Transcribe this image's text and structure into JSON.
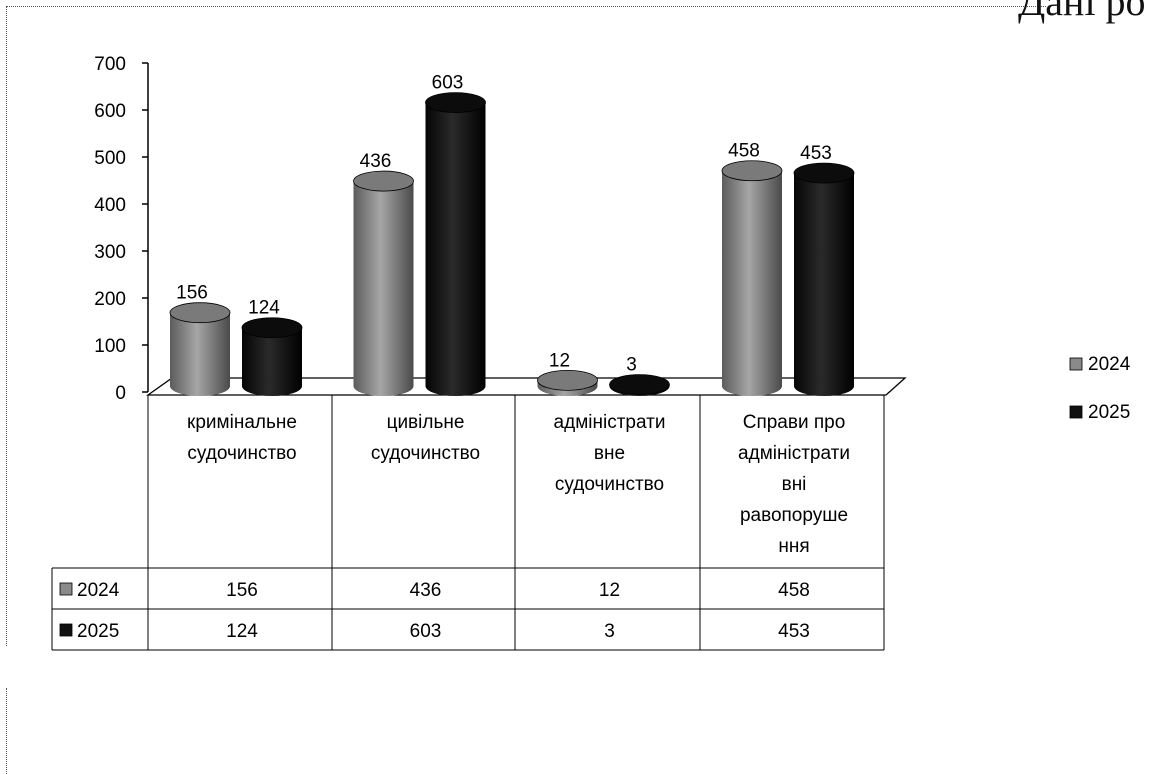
{
  "corner_text": "Дані ро",
  "chart_data": {
    "type": "bar",
    "categories": [
      [
        "кримінальне",
        "судочинство"
      ],
      [
        "цивільне",
        "судочинство"
      ],
      [
        "адміністрати",
        "вне",
        "судочинство"
      ],
      [
        "Справи про",
        "адміністрати",
        "вні",
        "равопоруше",
        "ння"
      ]
    ],
    "series": [
      {
        "name": "2024",
        "values": [
          156,
          436,
          12,
          458
        ],
        "color": "#8a8a8a",
        "legend_marker": "▩"
      },
      {
        "name": "2025",
        "values": [
          124,
          603,
          3,
          453
        ],
        "color": "#141414",
        "legend_marker": "■"
      }
    ],
    "ylim": [
      0,
      700
    ],
    "yticks": [
      0,
      100,
      200,
      300,
      400,
      500,
      600,
      700
    ],
    "grid": false,
    "legend": "right",
    "data_table": true,
    "style": "3d-cylinder"
  }
}
